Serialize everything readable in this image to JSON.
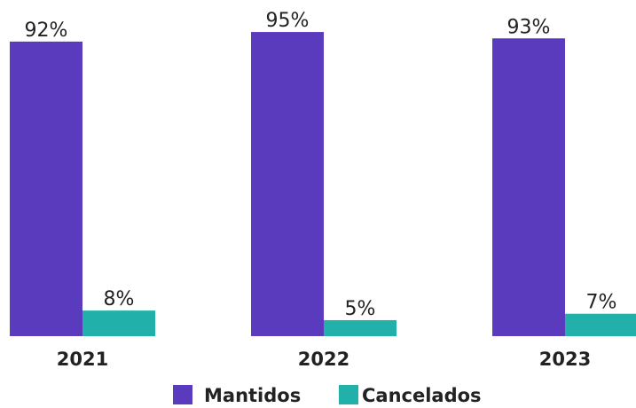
{
  "chart_data": {
    "type": "bar",
    "categories": [
      "2021",
      "2022",
      "2023"
    ],
    "series": [
      {
        "name": "Mantidos",
        "color": "#5a3abd",
        "values": [
          92,
          95,
          93
        ],
        "value_labels": [
          "92%",
          "95%",
          "93%"
        ]
      },
      {
        "name": "Cancelados",
        "color": "#21b0aa",
        "values": [
          8,
          5,
          7
        ],
        "value_labels": [
          "8%",
          "5%",
          "7%"
        ]
      }
    ]
  }
}
